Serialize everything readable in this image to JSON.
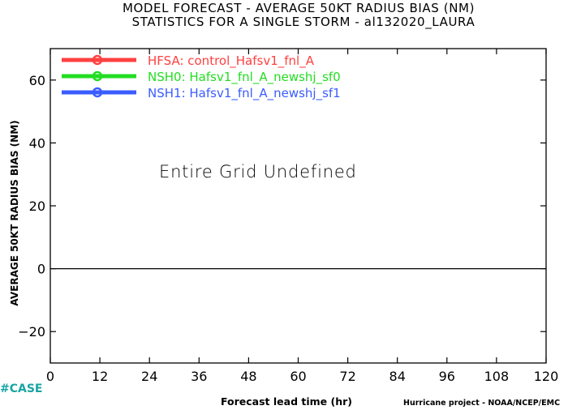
{
  "chart_data": {
    "type": "line",
    "title": "MODEL FORECAST - AVERAGE 50KT RADIUS BIAS (NM)",
    "subtitle": "STATISTICS FOR A SINGLE STORM - al132020_LAURA",
    "xlabel": "Forecast lead time (hr)",
    "ylabel": "AVERAGE 50KT RADIUS BIAS (NM)",
    "xlim": [
      0,
      120
    ],
    "ylim": [
      -30,
      70
    ],
    "x_ticks": [
      0,
      12,
      24,
      36,
      48,
      60,
      72,
      84,
      96,
      108,
      120
    ],
    "y_ticks": [
      -20,
      0,
      20,
      40,
      60
    ],
    "reference_line_y": 0,
    "grid": false,
    "legend_position": "top-left",
    "annotation": "Entire Grid Undefined",
    "series": [
      {
        "name": "HFSA: control_Hafsv1_fnl_A",
        "color": "#ff4040",
        "values": []
      },
      {
        "name": "NSH0: Hafsv1_fnl_A_newshj_sf0",
        "color": "#22dd22",
        "values": []
      },
      {
        "name": "NSH1: Hafsv1_fnl_A_newshj_sf1",
        "color": "#3a5cff",
        "values": []
      }
    ]
  },
  "footer": {
    "tag": "#CASE",
    "credit": "Hurricane project - NOAA/NCEP/EMC"
  }
}
